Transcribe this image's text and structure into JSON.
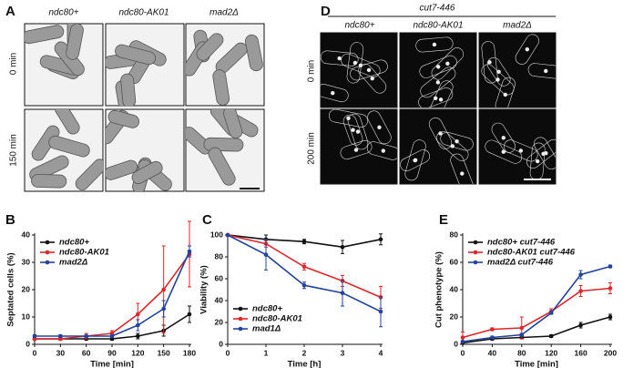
{
  "panels": {
    "A": {
      "label": "A",
      "columns": [
        "ndc80+",
        "ndc80-AK01",
        "mad2Δ"
      ],
      "rows": [
        "0 min",
        "150 min"
      ]
    },
    "D": {
      "label": "D",
      "strain": "cut7-446",
      "columns": [
        "ndc80+",
        "ndc80-AK01",
        "mad2Δ"
      ],
      "rows": [
        "0 min",
        "200 min"
      ]
    }
  },
  "chart_data": [
    {
      "type": "line",
      "panel": "B",
      "ylabel": "Septated cells (%)",
      "xlabel": "Time [min]",
      "x": [
        0,
        30,
        60,
        90,
        120,
        150,
        180
      ],
      "xlim": [
        0,
        180
      ],
      "xticks": [
        0,
        30,
        60,
        90,
        120,
        150,
        180
      ],
      "ylim": [
        0,
        40
      ],
      "yticks": [
        0,
        10,
        20,
        30,
        40
      ],
      "legend": "upper left",
      "series": [
        {
          "name": "ndc80+",
          "color": "#111111",
          "values": [
            2,
            2,
            2,
            2,
            3,
            5,
            11
          ],
          "errors": [
            0.5,
            0.5,
            0.5,
            0.5,
            1,
            2,
            3
          ]
        },
        {
          "name": "ndc80-AK01",
          "color": "#e0262b",
          "values": [
            2,
            2,
            3,
            4,
            11,
            20,
            33
          ],
          "errors": [
            0.5,
            0.5,
            1,
            1,
            4,
            16,
            12
          ]
        },
        {
          "name": "mad2Δ",
          "color": "#24439c",
          "values": [
            3,
            3,
            3,
            3,
            7,
            13,
            34
          ],
          "errors": [
            0.5,
            0.5,
            0.5,
            0.5,
            2,
            3,
            2
          ]
        }
      ]
    },
    {
      "type": "line",
      "panel": "C",
      "ylabel": "Viability (%)",
      "xlabel": "Time [h]",
      "x": [
        0,
        1,
        2,
        3,
        4
      ],
      "xlim": [
        0,
        4
      ],
      "xticks": [
        0,
        1,
        2,
        3,
        4
      ],
      "ylim": [
        0,
        100
      ],
      "yticks": [
        0,
        20,
        40,
        60,
        80,
        100
      ],
      "legend": "lower left",
      "series": [
        {
          "name": "ndc80+",
          "color": "#111111",
          "values": [
            100,
            96,
            94,
            89,
            96
          ],
          "errors": [
            0,
            4,
            2,
            6,
            5
          ]
        },
        {
          "name": "ndc80-AK01",
          "color": "#e0262b",
          "values": [
            100,
            92,
            71,
            58,
            43
          ],
          "errors": [
            0,
            3,
            3,
            5,
            10
          ]
        },
        {
          "name": "mad1Δ",
          "color": "#24439c",
          "values": [
            100,
            82,
            54,
            47,
            30
          ],
          "errors": [
            0,
            14,
            3,
            12,
            14
          ]
        }
      ]
    },
    {
      "type": "line",
      "panel": "E",
      "ylabel": "Cut phenotype (%)",
      "xlabel": "Time [min]",
      "x": [
        0,
        40,
        80,
        120,
        160,
        200
      ],
      "xlim": [
        0,
        200
      ],
      "xticks": [
        0,
        40,
        80,
        120,
        160,
        200
      ],
      "ylim": [
        0,
        80
      ],
      "yticks": [
        0,
        20,
        40,
        60,
        80
      ],
      "legend": "upper left",
      "series": [
        {
          "name": "ndc80+ cut7-446",
          "color": "#111111",
          "values": [
            1,
            4,
            5,
            6,
            14,
            20
          ],
          "errors": [
            0.5,
            1,
            1,
            1,
            2,
            2
          ]
        },
        {
          "name": "ndc80-AK01 cut7-446",
          "color": "#e0262b",
          "values": [
            5,
            11,
            12,
            24,
            39,
            41
          ],
          "errors": [
            4,
            1,
            8,
            2,
            4,
            4
          ]
        },
        {
          "name": "mad2Δ cut7-446",
          "color": "#24439c",
          "values": [
            2,
            5,
            7,
            23,
            51,
            57
          ],
          "errors": [
            0.5,
            1,
            1,
            1,
            3,
            1
          ]
        }
      ]
    }
  ]
}
